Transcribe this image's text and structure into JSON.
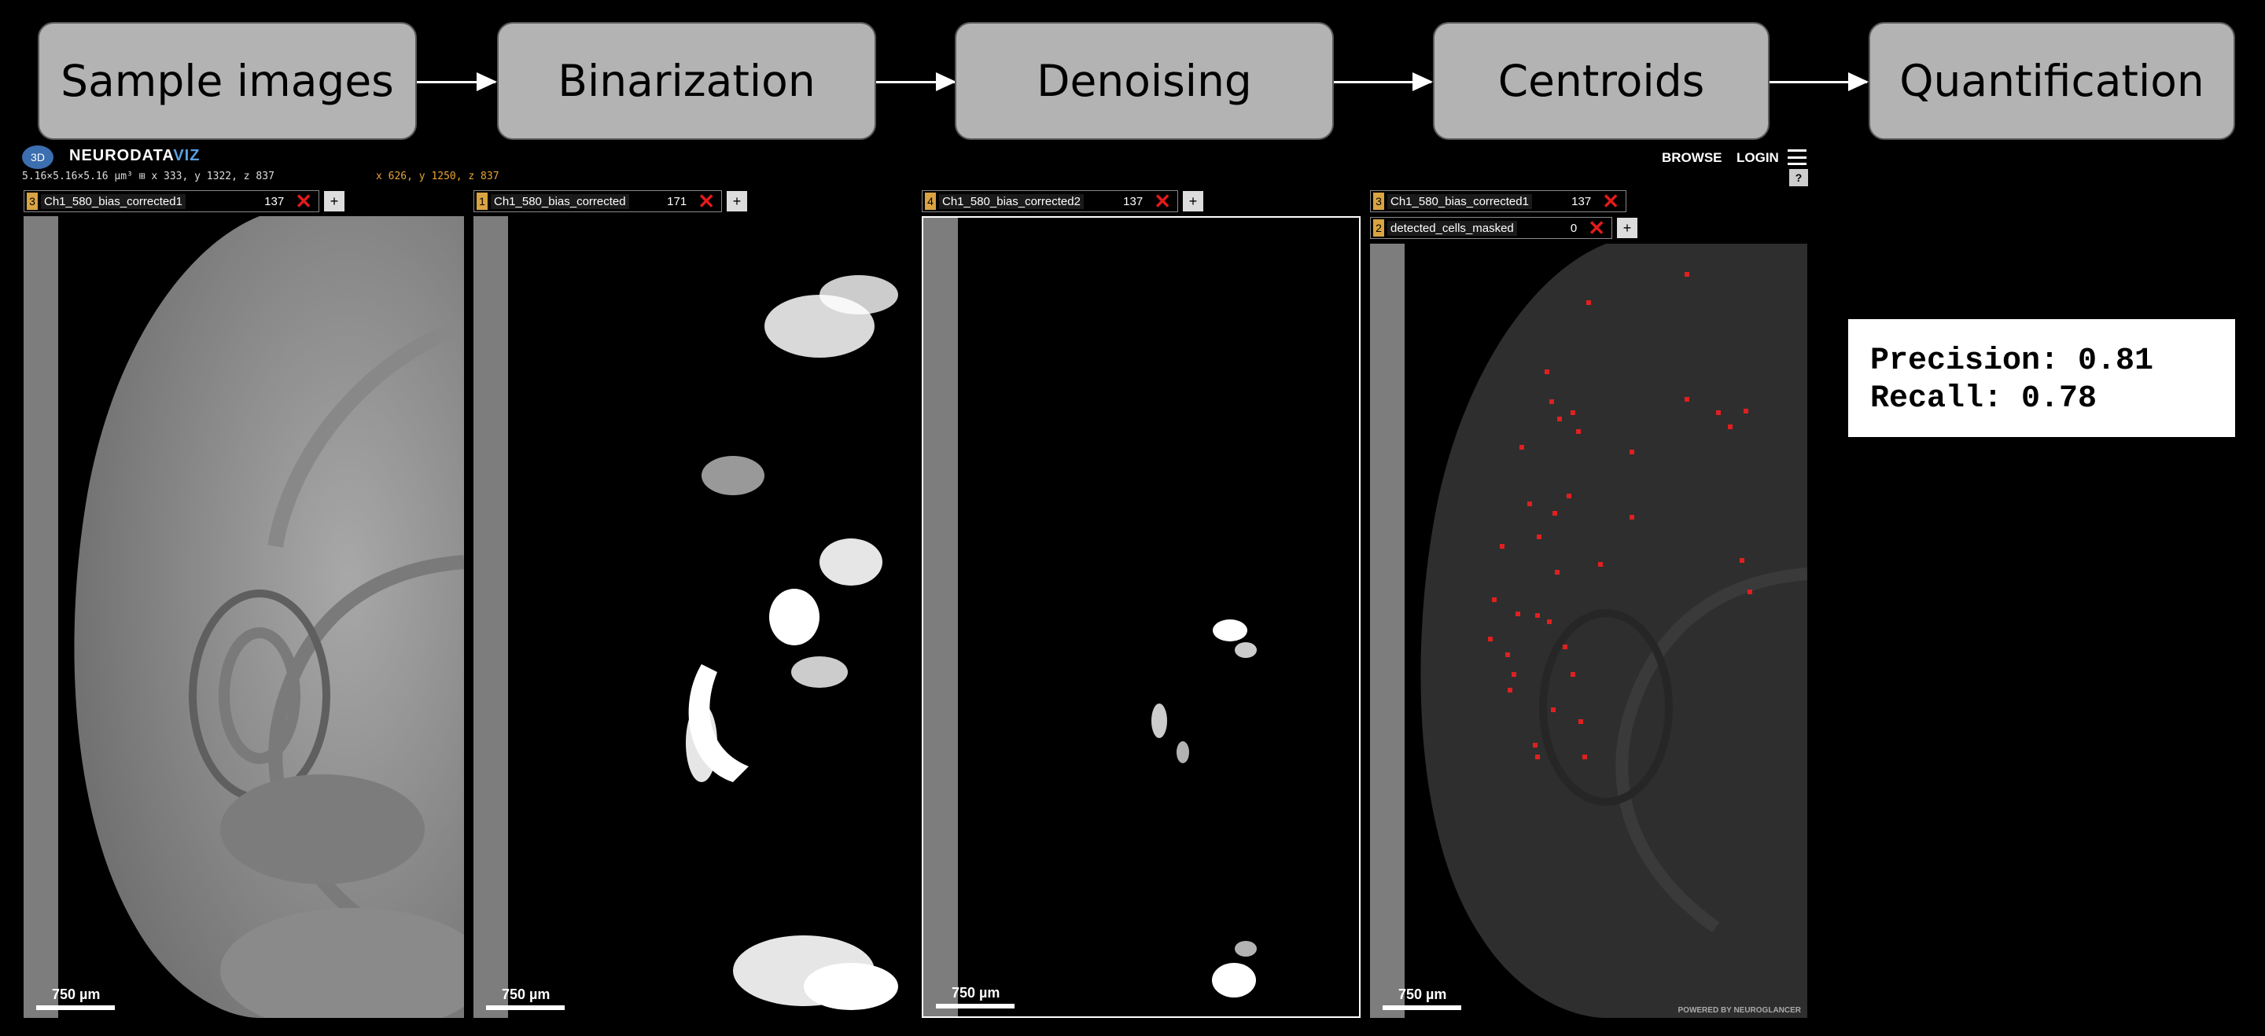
{
  "pipeline": {
    "stages": [
      "Sample images",
      "Binarization",
      "Denoising",
      "Centroids",
      "Quantification"
    ]
  },
  "viewer": {
    "brand_prefix": "NEURODATA",
    "brand_suffix": "VIZ",
    "coords_left": "5.16×5.16×5.16 µm³ ⊞ x 333, y 1322, z 837",
    "coords_right": "x 626, y 1250, z 837",
    "browse": "BROWSE",
    "login": "LOGIN",
    "help": "?",
    "scale_label": "750 µm",
    "powered_by": "POWERED BY NEUROGLANCER",
    "add_label": "+"
  },
  "panels": [
    {
      "layers": [
        {
          "num": "3",
          "name": "Ch1_580_bias_corrected1",
          "value": "137"
        }
      ]
    },
    {
      "layers": [
        {
          "num": "1",
          "name": "Ch1_580_bias_corrected",
          "value": "171"
        }
      ]
    },
    {
      "layers": [
        {
          "num": "4",
          "name": "Ch1_580_bias_corrected2",
          "value": "137"
        }
      ]
    },
    {
      "layers": [
        {
          "num": "3",
          "name": "Ch1_580_bias_corrected1",
          "value": "137"
        },
        {
          "num": "2",
          "name": "detected_cells_masked",
          "value": "0"
        }
      ]
    }
  ],
  "metrics": {
    "precision": "Precision: 0.81",
    "recall": "Recall: 0.78"
  }
}
